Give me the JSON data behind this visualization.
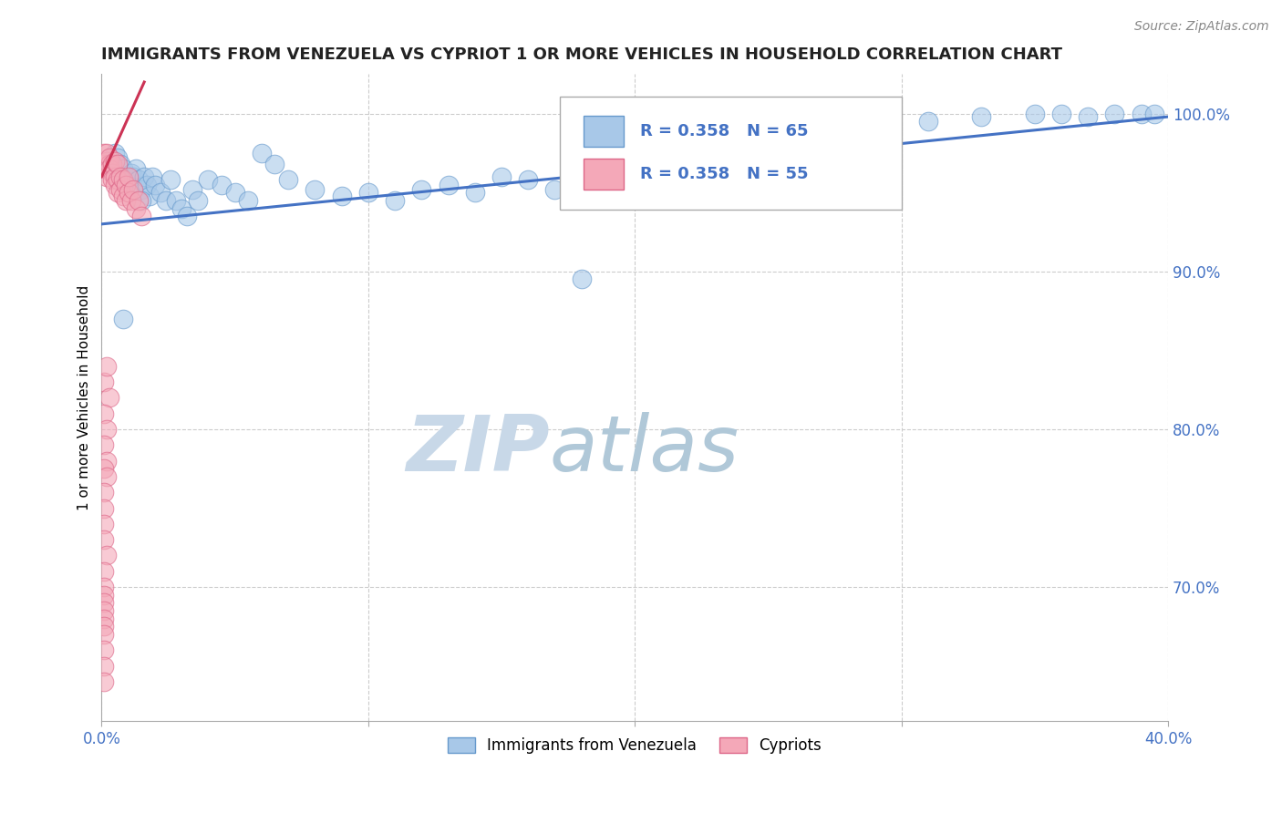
{
  "title": "IMMIGRANTS FROM VENEZUELA VS CYPRIOT 1 OR MORE VEHICLES IN HOUSEHOLD CORRELATION CHART",
  "source": "Source: ZipAtlas.com",
  "ylabel": "1 or more Vehicles in Household",
  "xmin": 0.0,
  "xmax": 0.4,
  "ymin": 0.615,
  "ymax": 1.025,
  "x_ticks": [
    0.0,
    0.1,
    0.2,
    0.3,
    0.4
  ],
  "x_tick_labels": [
    "0.0%",
    "",
    "",
    "",
    "40.0%"
  ],
  "y_ticks": [
    0.7,
    0.8,
    0.9,
    1.0
  ],
  "y_tick_labels": [
    "70.0%",
    "80.0%",
    "90.0%",
    "100.0%"
  ],
  "watermark_zip": "ZIP",
  "watermark_atlas": "atlas",
  "blue_scatter_x": [
    0.002,
    0.004,
    0.005,
    0.006,
    0.007,
    0.008,
    0.009,
    0.01,
    0.011,
    0.012,
    0.013,
    0.014,
    0.015,
    0.016,
    0.017,
    0.018,
    0.019,
    0.02,
    0.022,
    0.024,
    0.026,
    0.028,
    0.03,
    0.032,
    0.034,
    0.036,
    0.04,
    0.045,
    0.05,
    0.055,
    0.06,
    0.065,
    0.07,
    0.08,
    0.09,
    0.1,
    0.11,
    0.12,
    0.13,
    0.14,
    0.15,
    0.16,
    0.17,
    0.18,
    0.19,
    0.2,
    0.21,
    0.22,
    0.23,
    0.24,
    0.25,
    0.26,
    0.27,
    0.28,
    0.29,
    0.31,
    0.33,
    0.35,
    0.36,
    0.37,
    0.38,
    0.39,
    0.395,
    0.008,
    0.015
  ],
  "blue_scatter_y": [
    0.97,
    0.968,
    0.975,
    0.972,
    0.968,
    0.965,
    0.958,
    0.955,
    0.962,
    0.96,
    0.965,
    0.958,
    0.952,
    0.96,
    0.955,
    0.948,
    0.96,
    0.955,
    0.95,
    0.945,
    0.958,
    0.945,
    0.94,
    0.935,
    0.952,
    0.945,
    0.958,
    0.955,
    0.95,
    0.945,
    0.975,
    0.968,
    0.958,
    0.952,
    0.948,
    0.95,
    0.945,
    0.952,
    0.955,
    0.95,
    0.96,
    0.958,
    0.952,
    0.895,
    0.97,
    0.975,
    0.98,
    0.985,
    0.99,
    0.988,
    0.97,
    0.985,
    0.99,
    0.992,
    0.988,
    0.995,
    0.998,
    1.0,
    1.0,
    0.998,
    1.0,
    1.0,
    1.0,
    0.87,
    0.945
  ],
  "pink_scatter_x": [
    0.001,
    0.001,
    0.002,
    0.002,
    0.002,
    0.003,
    0.003,
    0.003,
    0.004,
    0.004,
    0.004,
    0.005,
    0.005,
    0.005,
    0.006,
    0.006,
    0.006,
    0.007,
    0.007,
    0.008,
    0.008,
    0.009,
    0.009,
    0.01,
    0.01,
    0.011,
    0.012,
    0.013,
    0.014,
    0.015,
    0.001,
    0.002,
    0.003,
    0.001,
    0.002,
    0.001,
    0.002,
    0.001,
    0.002,
    0.001,
    0.001,
    0.001,
    0.001,
    0.002,
    0.001,
    0.001,
    0.001,
    0.001,
    0.001,
    0.001,
    0.001,
    0.001,
    0.001,
    0.001,
    0.001
  ],
  "pink_scatter_y": [
    0.975,
    0.968,
    0.97,
    0.96,
    0.975,
    0.968,
    0.972,
    0.965,
    0.962,
    0.968,
    0.958,
    0.96,
    0.97,
    0.955,
    0.968,
    0.958,
    0.95,
    0.96,
    0.952,
    0.958,
    0.948,
    0.955,
    0.945,
    0.95,
    0.96,
    0.945,
    0.952,
    0.94,
    0.945,
    0.935,
    0.83,
    0.84,
    0.82,
    0.81,
    0.8,
    0.79,
    0.78,
    0.775,
    0.77,
    0.76,
    0.75,
    0.74,
    0.73,
    0.72,
    0.71,
    0.7,
    0.695,
    0.69,
    0.685,
    0.68,
    0.675,
    0.67,
    0.66,
    0.65,
    0.64
  ],
  "blue_line_x": [
    0.0,
    0.4
  ],
  "blue_line_y": [
    0.93,
    0.998
  ],
  "pink_line_x": [
    0.0,
    0.016
  ],
  "pink_line_y": [
    0.96,
    1.02
  ],
  "title_color": "#222222",
  "title_fontsize": 13,
  "source_color": "#888888",
  "source_fontsize": 10,
  "blue_color": "#a8c8e8",
  "pink_color": "#f4a8b8",
  "blue_edge_color": "#6699cc",
  "pink_edge_color": "#dd6688",
  "blue_line_color": "#4472c4",
  "pink_line_color": "#cc3355",
  "watermark_color_zip": "#c8d8e8",
  "watermark_color_atlas": "#b0c8d8",
  "grid_color": "#cccccc",
  "tick_label_color": "#4472c4",
  "legend_R_color": "#4472c4"
}
